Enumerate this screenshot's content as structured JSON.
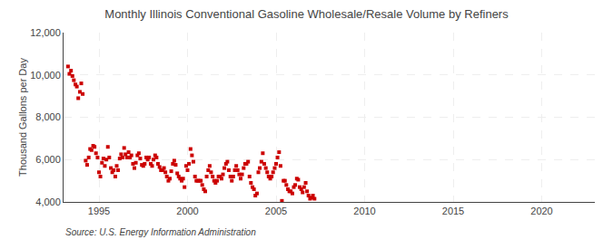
{
  "chart_data": {
    "type": "scatter",
    "title": "Monthly Illinois Conventional Gasoline Wholesale/Resale Volume by Refiners",
    "ylabel": "Thousand Gallons per Day",
    "annotations": [
      "Source: U.S. Energy Information Administration"
    ],
    "color": "#cc0000",
    "marker": "square",
    "grid": true,
    "xlim": [
      1993.0,
      2023.0
    ],
    "xticks": [
      1995,
      2000,
      2005,
      2010,
      2015,
      2020
    ],
    "ylim": [
      4000,
      12000
    ],
    "yticks": [
      {
        "value": 4000,
        "label": "4,000"
      },
      {
        "value": 6000,
        "label": "6,000"
      },
      {
        "value": 8000,
        "label": "8,000"
      },
      {
        "value": 10000,
        "label": "10,000"
      },
      {
        "value": 12000,
        "label": "12,000"
      }
    ],
    "x": [
      1993.25,
      1993.33,
      1993.42,
      1993.5,
      1993.58,
      1993.67,
      1993.75,
      1993.83,
      1993.92,
      1994.0,
      1994.08,
      1994.25,
      1994.33,
      1994.42,
      1994.5,
      1994.58,
      1994.67,
      1994.75,
      1994.83,
      1994.92,
      1995.0,
      1995.08,
      1995.17,
      1995.25,
      1995.33,
      1995.42,
      1995.5,
      1995.58,
      1995.67,
      1995.75,
      1995.83,
      1995.92,
      1996.0,
      1996.08,
      1996.17,
      1996.25,
      1996.33,
      1996.42,
      1996.5,
      1996.58,
      1996.67,
      1996.75,
      1996.83,
      1996.92,
      1997.0,
      1997.08,
      1997.17,
      1997.25,
      1997.33,
      1997.42,
      1997.5,
      1997.58,
      1997.67,
      1997.75,
      1997.83,
      1997.92,
      1998.0,
      1998.08,
      1998.17,
      1998.25,
      1998.33,
      1998.42,
      1998.5,
      1998.58,
      1998.67,
      1998.75,
      1998.83,
      1998.92,
      1999.0,
      1999.08,
      1999.17,
      1999.25,
      1999.33,
      1999.42,
      1999.5,
      1999.58,
      1999.67,
      1999.75,
      1999.83,
      1999.92,
      2000.0,
      2000.08,
      2000.17,
      2000.25,
      2000.33,
      2000.42,
      2000.5,
      2000.58,
      2000.67,
      2000.75,
      2000.83,
      2000.92,
      2001.0,
      2001.08,
      2001.17,
      2001.25,
      2001.33,
      2001.42,
      2001.5,
      2001.58,
      2001.67,
      2001.75,
      2001.83,
      2001.92,
      2002.0,
      2002.08,
      2002.17,
      2002.25,
      2002.33,
      2002.42,
      2002.5,
      2002.58,
      2002.67,
      2002.75,
      2002.83,
      2002.92,
      2003.0,
      2003.08,
      2003.17,
      2003.25,
      2003.33,
      2003.42,
      2003.5,
      2003.58,
      2003.67,
      2003.75,
      2003.83,
      2003.92,
      2004.0,
      2004.08,
      2004.17,
      2004.25,
      2004.33,
      2004.42,
      2004.5,
      2004.58,
      2004.67,
      2004.75,
      2004.83,
      2004.92,
      2005.0,
      2005.08,
      2005.17,
      2005.25,
      2005.33,
      2005.42,
      2005.5,
      2005.58,
      2005.67,
      2005.75,
      2005.83,
      2005.92,
      2006.0,
      2006.08,
      2006.17,
      2006.25,
      2006.33,
      2006.42,
      2006.5,
      2006.58,
      2006.67,
      2006.75,
      2006.83,
      2006.92,
      2007.0,
      2007.08,
      2007.17
    ],
    "values": [
      10400,
      10050,
      10200,
      9950,
      9750,
      9550,
      9450,
      8900,
      9200,
      9600,
      9100,
      5950,
      5750,
      6100,
      6500,
      6450,
      6650,
      6600,
      6300,
      6100,
      5400,
      5200,
      5850,
      6050,
      5700,
      6000,
      6600,
      6100,
      5600,
      5400,
      5500,
      5200,
      5700,
      5500,
      6050,
      6250,
      6100,
      6550,
      6250,
      6100,
      6350,
      6100,
      6200,
      5800,
      5600,
      5850,
      6200,
      6300,
      6050,
      5750,
      5700,
      5800,
      6100,
      6000,
      6100,
      5800,
      5700,
      6000,
      6200,
      6100,
      5800,
      5650,
      5500,
      5500,
      5600,
      5400,
      5200,
      5000,
      5100,
      5450,
      5800,
      5950,
      5750,
      5350,
      5200,
      5100,
      5000,
      5100,
      4700,
      5700,
      5500,
      5800,
      6500,
      6200,
      5900,
      5200,
      5000,
      5000,
      5000,
      5000,
      4800,
      4600,
      4500,
      5200,
      5500,
      5700,
      5400,
      5200,
      5000,
      4900,
      5000,
      5200,
      5200,
      5100,
      5300,
      5600,
      5800,
      5900,
      5500,
      5200,
      5000,
      5200,
      5500,
      5700,
      5500,
      5300,
      5100,
      5300,
      5600,
      5800,
      5800,
      5900,
      5200,
      4900,
      4700,
      4600,
      4300,
      4400,
      5400,
      5600,
      5900,
      6300,
      5800,
      5600,
      5400,
      5200,
      5100,
      5200,
      5400,
      5600,
      5800,
      6100,
      6350,
      5700,
      4050,
      5000,
      5000,
      4800,
      4600,
      4500,
      4500,
      4400,
      4700,
      4800,
      5100,
      5050,
      4700,
      4600,
      4450,
      4700,
      4900,
      4500,
      4300,
      4150,
      4200,
      4300,
      4150
    ]
  }
}
